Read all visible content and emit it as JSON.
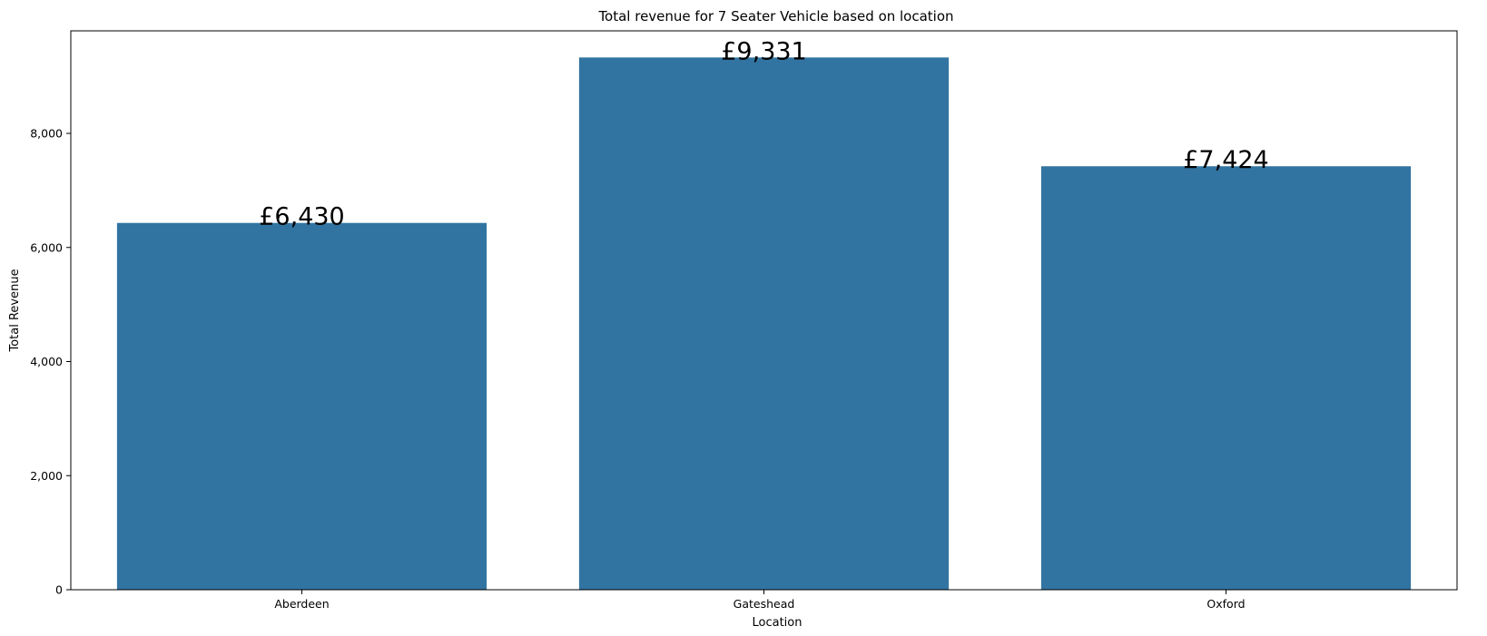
{
  "chart_data": {
    "type": "bar",
    "title": "Total revenue for 7 Seater Vehicle based on location",
    "xlabel": "Location",
    "ylabel": "Total Revenue",
    "categories": [
      "Aberdeen",
      "Gateshead",
      "Oxford"
    ],
    "values": [
      6430,
      9331,
      7424
    ],
    "data_labels": [
      "£6,430",
      "£9,331",
      "£7,424"
    ],
    "ylim": [
      0,
      9797.55
    ],
    "yticks": [
      0,
      2000,
      4000,
      6000,
      8000
    ],
    "ytick_labels": [
      "0",
      "2,000",
      "4,000",
      "6,000",
      "8,000"
    ],
    "grid": false,
    "bar_color": "#3274a1"
  }
}
